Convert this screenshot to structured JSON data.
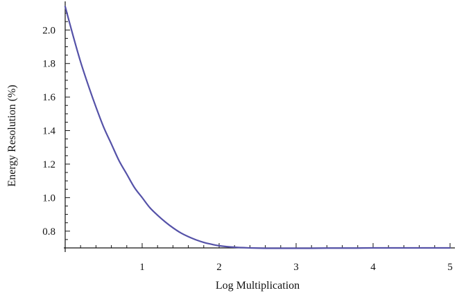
{
  "chart_data": {
    "type": "line",
    "title": "",
    "xlabel": "Log Multiplication",
    "ylabel": "Energy Resolution (%)",
    "xlim": [
      0,
      5
    ],
    "ylim": [
      0.7,
      2.15
    ],
    "x_ticks": [
      1,
      2,
      3,
      4,
      5
    ],
    "x_tick_labels": [
      "1",
      "2",
      "3",
      "4",
      "5"
    ],
    "y_ticks": [
      0.8,
      1.0,
      1.2,
      1.4,
      1.6,
      1.8,
      2.0
    ],
    "y_tick_labels": [
      "0.8",
      "1.0",
      "1.2",
      "1.4",
      "1.6",
      "1.8",
      "2.0"
    ],
    "grid": false,
    "legend": "none",
    "series": [
      {
        "color": "#5552a8",
        "x": [
          0,
          0.1,
          0.2,
          0.3,
          0.4,
          0.5,
          0.6,
          0.7,
          0.8,
          0.9,
          1.0,
          1.1,
          1.2,
          1.3,
          1.4,
          1.5,
          1.6,
          1.7,
          1.8,
          1.9,
          2.0,
          2.2,
          2.4,
          2.6,
          2.8,
          3.0,
          3.2,
          3.4,
          3.6,
          3.8,
          4.0,
          4.5,
          5.0
        ],
        "y": [
          2.14,
          1.97,
          1.81,
          1.67,
          1.54,
          1.42,
          1.32,
          1.22,
          1.14,
          1.06,
          1.0,
          0.94,
          0.895,
          0.855,
          0.82,
          0.79,
          0.767,
          0.748,
          0.733,
          0.722,
          0.713,
          0.704,
          0.7,
          0.698,
          0.698,
          0.698,
          0.698,
          0.699,
          0.699,
          0.699,
          0.7,
          0.7,
          0.7
        ]
      }
    ]
  }
}
